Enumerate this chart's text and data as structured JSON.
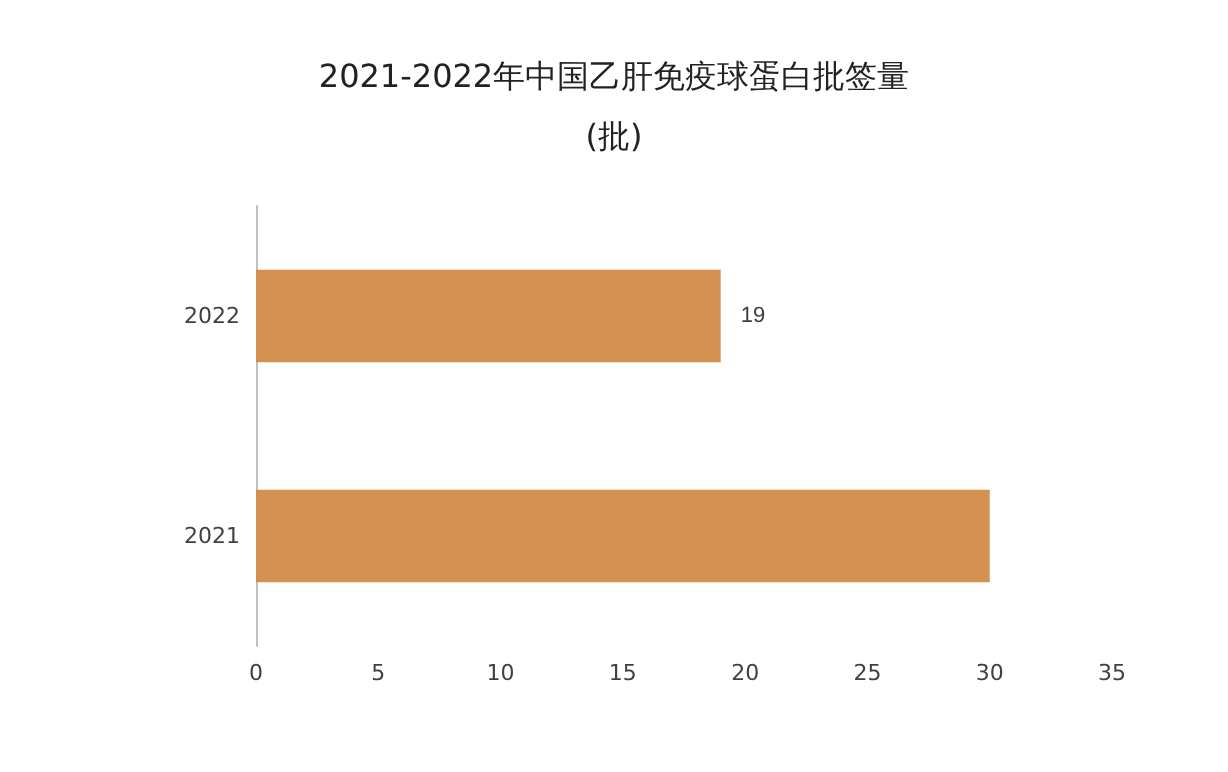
{
  "chart_data": {
    "type": "bar",
    "orientation": "horizontal",
    "title": "2021-2022年中国乙肝免疫球蛋白批签量\n(批)",
    "categories": [
      "2022",
      "2021"
    ],
    "values": [
      19,
      30
    ],
    "value_labels": [
      "19",
      null
    ],
    "color": "#d4904f",
    "xlim": [
      0,
      35
    ],
    "xticks": [
      0,
      5,
      10,
      15,
      20,
      25,
      30,
      35
    ],
    "grid": false
  }
}
